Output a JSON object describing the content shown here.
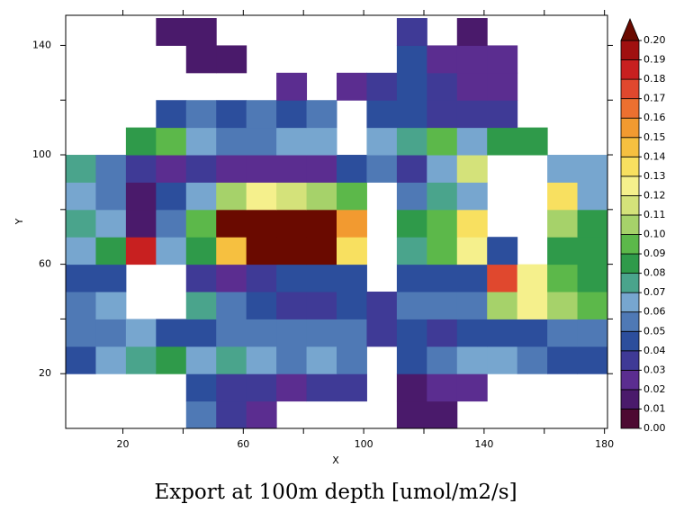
{
  "chart_data": {
    "type": "heatmap",
    "title": "Export at 100m depth [umol/m2/s]",
    "xlabel": "X",
    "ylabel": "Y",
    "xlim": [
      1,
      181
    ],
    "ylim": [
      0,
      151
    ],
    "xticks": [
      20,
      60,
      100,
      140,
      180
    ],
    "xminorticks": [
      40,
      80,
      120,
      160
    ],
    "yticks": [
      20,
      60,
      100,
      140
    ],
    "yminorticks": [
      40,
      80,
      120
    ],
    "x": [
      6,
      16,
      26,
      36,
      46,
      56,
      66,
      76,
      86,
      96,
      106,
      116,
      126,
      136,
      146,
      156,
      166,
      176
    ],
    "y": [
      5,
      15,
      25,
      35,
      45,
      55,
      65,
      75,
      85,
      95,
      105,
      115,
      125,
      135,
      145
    ],
    "z": [
      [
        null,
        null,
        null,
        null,
        0.05,
        0.03,
        0.02,
        null,
        null,
        null,
        null,
        0.01,
        0.01,
        null,
        null,
        null,
        null,
        null
      ],
      [
        null,
        null,
        null,
        null,
        0.04,
        0.03,
        0.03,
        0.02,
        0.03,
        0.03,
        null,
        0.01,
        0.02,
        0.02,
        null,
        null,
        null,
        null
      ],
      [
        0.04,
        0.06,
        0.07,
        0.08,
        0.06,
        0.07,
        0.06,
        0.05,
        0.06,
        0.05,
        null,
        0.04,
        0.05,
        0.06,
        0.06,
        0.05,
        0.04,
        0.04
      ],
      [
        0.05,
        0.05,
        0.06,
        0.04,
        0.04,
        0.05,
        0.05,
        0.05,
        0.05,
        0.05,
        0.03,
        0.04,
        0.03,
        0.04,
        0.04,
        0.04,
        0.05,
        0.05
      ],
      [
        0.05,
        0.06,
        null,
        null,
        0.07,
        0.05,
        0.04,
        0.03,
        0.03,
        0.04,
        0.03,
        0.05,
        0.05,
        0.05,
        0.1,
        0.12,
        0.1,
        0.09
      ],
      [
        0.04,
        0.04,
        null,
        null,
        0.03,
        0.02,
        0.03,
        0.04,
        0.04,
        0.04,
        null,
        0.04,
        0.04,
        0.04,
        0.17,
        0.12,
        0.09,
        0.08
      ],
      [
        0.06,
        0.08,
        0.18,
        0.06,
        0.08,
        0.14,
        0.21,
        0.21,
        0.21,
        0.13,
        null,
        0.07,
        0.09,
        0.12,
        0.04,
        null,
        0.08,
        0.08
      ],
      [
        0.07,
        0.06,
        0.01,
        0.05,
        0.09,
        0.21,
        0.21,
        0.21,
        0.21,
        0.15,
        null,
        0.08,
        0.09,
        0.13,
        null,
        null,
        0.1,
        0.08
      ],
      [
        0.06,
        0.05,
        0.01,
        0.04,
        0.06,
        0.1,
        0.12,
        0.11,
        0.1,
        0.09,
        null,
        0.05,
        0.07,
        0.06,
        null,
        null,
        0.13,
        0.06
      ],
      [
        0.07,
        0.05,
        0.03,
        0.02,
        0.03,
        0.02,
        0.02,
        0.02,
        0.02,
        0.04,
        0.05,
        0.03,
        0.06,
        0.11,
        null,
        null,
        0.06,
        0.06
      ],
      [
        null,
        null,
        0.08,
        0.09,
        0.06,
        0.05,
        0.05,
        0.06,
        0.06,
        null,
        0.06,
        0.07,
        0.09,
        0.06,
        0.08,
        0.08,
        null,
        null
      ],
      [
        null,
        null,
        null,
        0.04,
        0.05,
        0.04,
        0.05,
        0.04,
        0.05,
        null,
        0.04,
        0.04,
        0.03,
        0.03,
        0.03,
        null,
        null,
        null
      ],
      [
        null,
        null,
        null,
        null,
        null,
        null,
        null,
        0.02,
        null,
        0.02,
        0.03,
        0.04,
        0.03,
        0.02,
        0.02,
        null,
        null,
        null
      ],
      [
        null,
        null,
        null,
        null,
        0.01,
        0.01,
        null,
        null,
        null,
        null,
        null,
        0.04,
        0.025,
        0.02,
        0.02,
        null,
        null,
        null
      ],
      [
        null,
        null,
        null,
        0.01,
        0.01,
        null,
        null,
        null,
        null,
        null,
        null,
        0.03,
        null,
        0.015,
        null,
        null,
        null,
        null
      ]
    ],
    "colorbar": {
      "levels": [
        {
          "value": 0,
          "label": "0.00"
        },
        {
          "value": 0.01,
          "label": "0.01"
        },
        {
          "value": 0.02,
          "label": "0.02"
        },
        {
          "value": 0.03,
          "label": "0.03"
        },
        {
          "value": 0.04,
          "label": "0.04"
        },
        {
          "value": 0.05,
          "label": "0.05"
        },
        {
          "value": 0.06,
          "label": "0.06"
        },
        {
          "value": 0.07,
          "label": "0.07"
        },
        {
          "value": 0.08,
          "label": "0.08"
        },
        {
          "value": 0.09,
          "label": "0.09"
        },
        {
          "value": 0.1,
          "label": "0.10"
        },
        {
          "value": 0.11,
          "label": "0.11"
        },
        {
          "value": 0.12,
          "label": "0.12"
        },
        {
          "value": 0.13,
          "label": "0.13"
        },
        {
          "value": 0.14,
          "label": "0.14"
        },
        {
          "value": 0.15,
          "label": "0.15"
        },
        {
          "value": 0.16,
          "label": "0.16"
        },
        {
          "value": 0.17,
          "label": "0.17"
        },
        {
          "value": 0.18,
          "label": "0.18"
        },
        {
          "value": 0.19,
          "label": "0.19"
        },
        {
          "value": 0.2,
          "label": "0.20"
        }
      ],
      "colors": [
        "#4d0a32",
        "#4a1a6b",
        "#5b2d90",
        "#3f3a96",
        "#2c4e9c",
        "#4f79b5",
        "#77a6cf",
        "#4aa48c",
        "#2f9a4a",
        "#5cb84a",
        "#a6d26a",
        "#d4e27a",
        "#f5f08c",
        "#f8e060",
        "#f6c040",
        "#f29a30",
        "#ec7030",
        "#e0482e",
        "#c82020",
        "#a01010"
      ],
      "over_color": "#6a0a00"
    }
  }
}
